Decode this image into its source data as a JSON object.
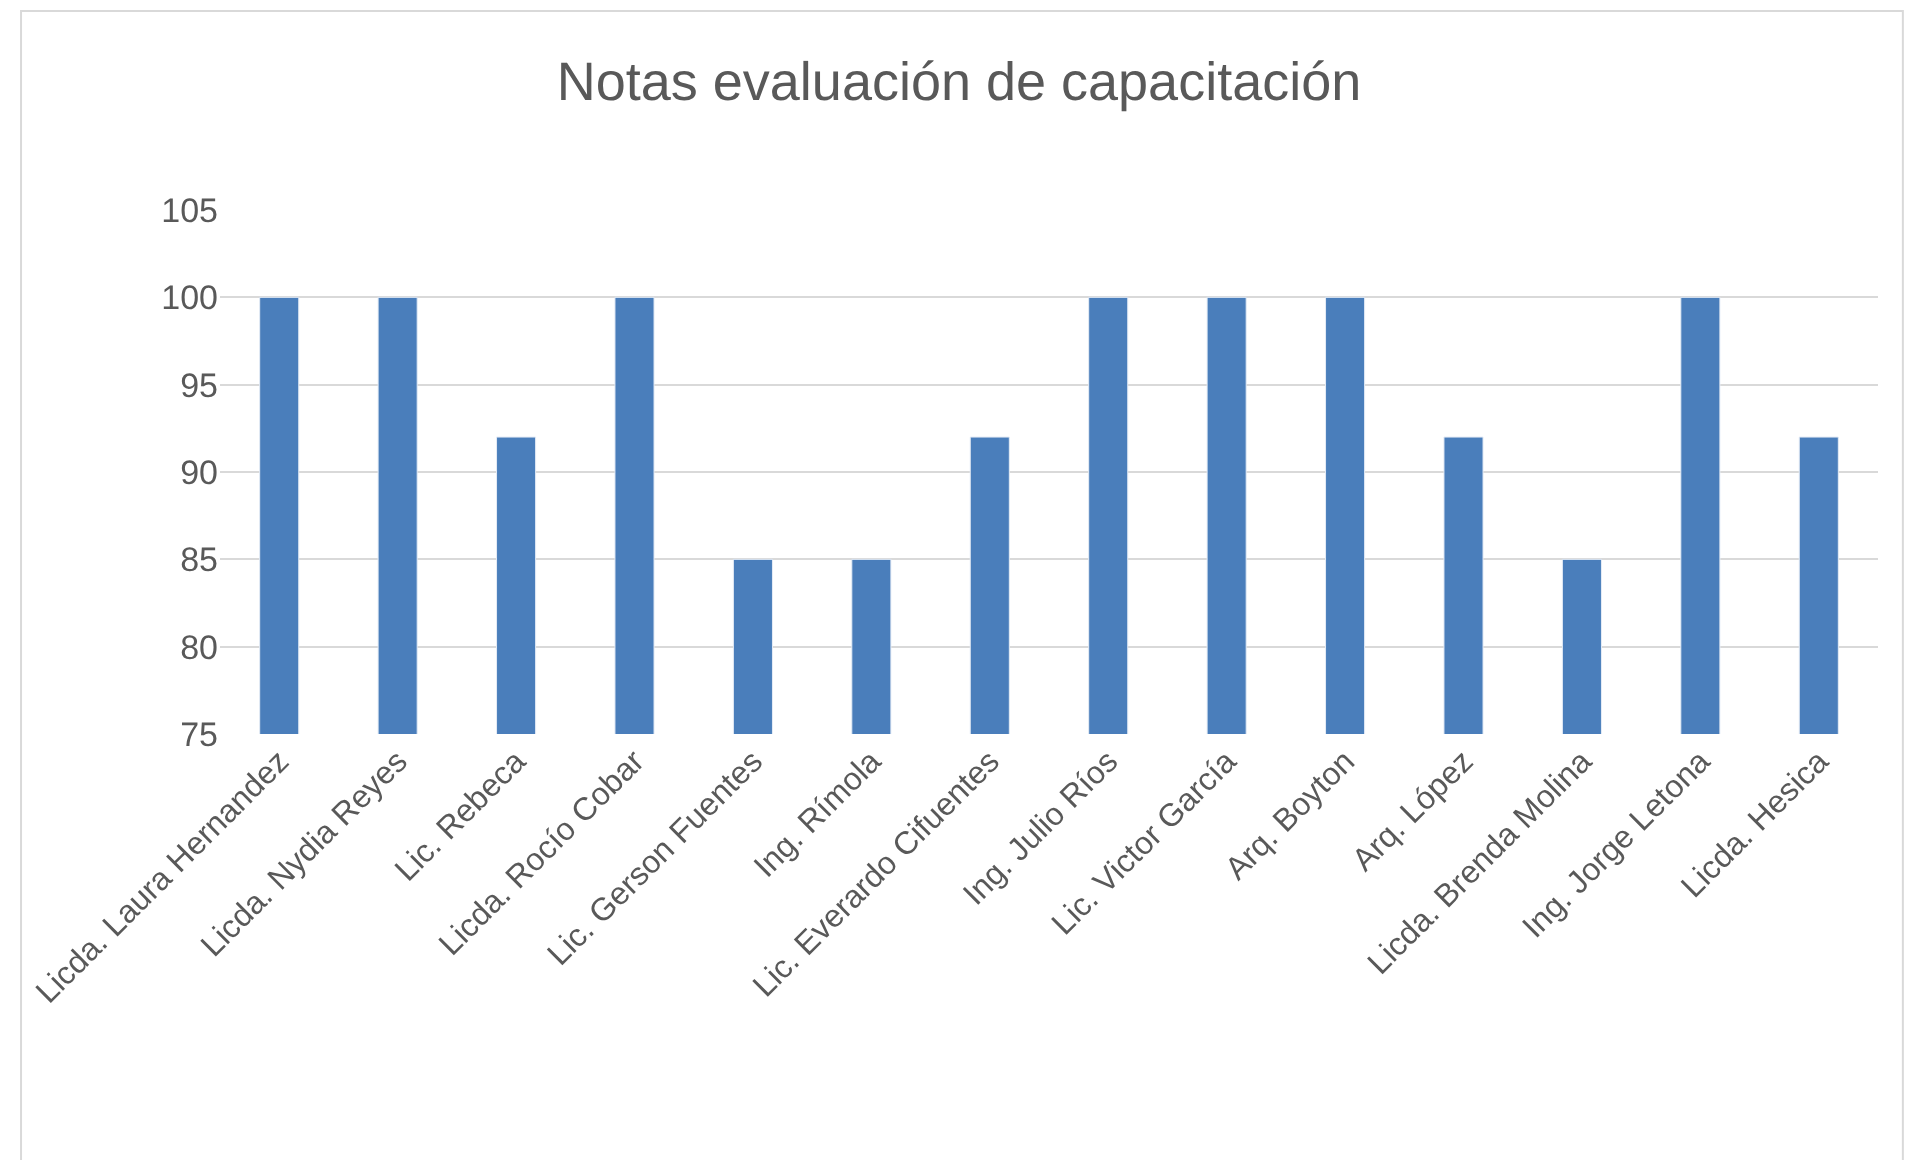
{
  "chart_data": {
    "type": "bar",
    "title": "Notas evaluación de capacitación",
    "categories": [
      "Licda. Laura Hernandez",
      "Licda. Nydia Reyes",
      "Lic. Rebeca",
      "Licda. Rocío Cobar",
      "Lic. Gerson Fuentes",
      "Ing. Rímola",
      "Lic. Everardo Cifuentes",
      "Ing. Julio Ríos",
      "Lic. Victor García",
      "Arq. Boyton",
      "Arq. López",
      "Licda. Brenda Molina",
      "Ing. Jorge Letona",
      "Licda. Hesica"
    ],
    "values": [
      100,
      100,
      92,
      100,
      85,
      85,
      92,
      100,
      100,
      100,
      92,
      85,
      100,
      92
    ],
    "color": "#4a7ebb",
    "ylim": [
      75,
      105
    ],
    "yticks": [
      75,
      80,
      85,
      90,
      95,
      100,
      105
    ],
    "grid": "y"
  }
}
